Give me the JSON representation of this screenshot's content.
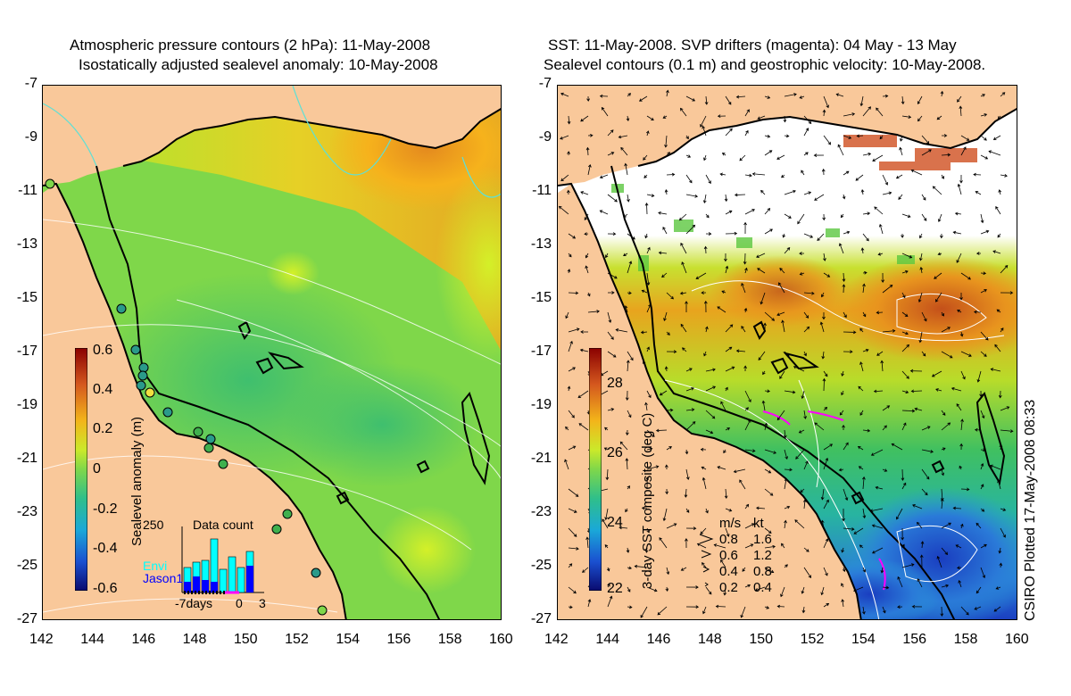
{
  "left_panel": {
    "title_line1": "Atmospheric pressure contours (2 hPa): 11-May-2008",
    "title_line2": "Isostatically adjusted sealevel anomaly: 10-May-2008",
    "colorbar_label": "Sealevel anomaly (m)",
    "colorbar_ticks": [
      "0.6",
      "0.4",
      "0.2",
      "0",
      "-0.2",
      "-0.4",
      "-0.6"
    ],
    "inset": {
      "title": "Data count",
      "ymax_label": "250",
      "series": [
        {
          "name": "Envi",
          "color": "#00ffff"
        },
        {
          "name": "Jason1",
          "color": "#0000ff"
        }
      ],
      "xlabels": [
        "-7days",
        "0",
        "3"
      ]
    }
  },
  "right_panel": {
    "title_line1": "SST: 11-May-2008. SVP drifters (magenta): 04 May - 13 May",
    "title_line2": "Sealevel contours (0.1 m) and geostrophic velocity: 10-May-2008.",
    "colorbar_label": "3-day SST composite (deg C)",
    "colorbar_ticks": [
      "28",
      "26",
      "24",
      "22"
    ],
    "velocity_legend": {
      "header_ms": "m/s",
      "header_kt": "kt",
      "rows": [
        {
          "ms": "0.8",
          "kt": "1.6"
        },
        {
          "ms": "0.6",
          "kt": "1.2"
        },
        {
          "ms": "0.4",
          "kt": "0.8"
        },
        {
          "ms": "0.2",
          "kt": "0.4"
        }
      ]
    }
  },
  "y_axis_ticks": [
    "-7",
    "-9",
    "-11",
    "-13",
    "-15",
    "-17",
    "-19",
    "-21",
    "-23",
    "-25",
    "-27"
  ],
  "x_axis_ticks": [
    "142",
    "144",
    "146",
    "148",
    "150",
    "152",
    "154",
    "156",
    "158",
    "160"
  ],
  "credit": "CSIRO Plotted 17-May-2008 08:33",
  "colors": {
    "land": "#f9c89a",
    "sea_anomaly_base": "#8bdc3c",
    "sst_warm": "#e08a1e",
    "sst_cool": "#2a7ad8",
    "drifter": "#ff00ff"
  }
}
